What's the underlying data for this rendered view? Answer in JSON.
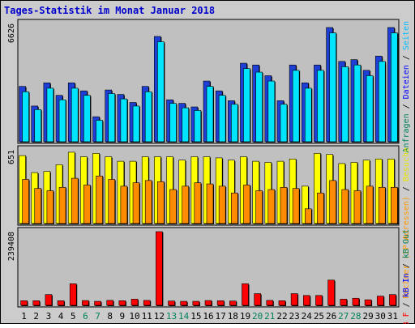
{
  "chart_data": {
    "type": "bar",
    "title": "Tages-Statistik im Monat Januar 2018",
    "categories": [
      "1",
      "2",
      "3",
      "4",
      "5",
      "6",
      "7",
      "8",
      "9",
      "10",
      "11",
      "12",
      "13",
      "14",
      "15",
      "16",
      "17",
      "18",
      "19",
      "20",
      "21",
      "22",
      "23",
      "24",
      "25",
      "26",
      "27",
      "28",
      "29",
      "30",
      "31"
    ],
    "weekend_days": [
      "6",
      "7",
      "13",
      "14",
      "20",
      "21",
      "27",
      "28"
    ],
    "panels": [
      {
        "id": "requests",
        "ytick_label": "6626",
        "ylim": [
          0,
          6626
        ],
        "side_labels": [
          {
            "text": "Anfragen",
            "color": "#00805c"
          },
          {
            "text": " / ",
            "color": "#000000"
          },
          {
            "text": "Dateien",
            "color": "#0000ff"
          },
          {
            "text": " / ",
            "color": "#000000"
          },
          {
            "text": "Seiten",
            "color": "#00bfff"
          }
        ],
        "series": [
          {
            "name": "Anfragen",
            "color": "#1e3fd6",
            "values": [
              3100,
              2000,
              3300,
              2600,
              3300,
              2850,
              1400,
              2900,
              2650,
              2200,
              3100,
              5900,
              2350,
              2150,
              1950,
              3400,
              2850,
              2300,
              4400,
              4300,
              3700,
              2300,
              4300,
              3300,
              4300,
              6400,
              4500,
              4600,
              4000,
              4800,
              6400
            ]
          },
          {
            "name": "Dateien",
            "color": "#00e5ff",
            "values": [
              2800,
              1800,
              3000,
              2350,
              3000,
              2600,
              1200,
              2700,
              2400,
              2000,
              2800,
              5600,
              2150,
              1900,
              1750,
              3100,
              2600,
              2100,
              4100,
              3900,
              3400,
              2100,
              4000,
              3000,
              4000,
              6100,
              4200,
              4300,
              3700,
              4500,
              6100
            ]
          }
        ]
      },
      {
        "id": "visits",
        "ytick_label": "651",
        "ylim": [
          0,
          651
        ],
        "side_labels": [
          {
            "text": "Rechner (IP-Adressen)",
            "color": "#ff9900"
          },
          {
            "text": " / ",
            "color": "#000000"
          },
          {
            "text": "Besuche",
            "color": "#e6e600"
          }
        ],
        "series": [
          {
            "name": "Besuche",
            "color": "#ffff00",
            "values": [
              600,
              450,
              460,
              520,
              630,
              590,
              620,
              590,
              550,
              550,
              590,
              590,
              590,
              560,
              590,
              590,
              580,
              560,
              590,
              550,
              540,
              550,
              570,
              330,
              620,
              610,
              530,
              540,
              560,
              570,
              570
            ]
          },
          {
            "name": "Rechner (IP-Adressen)",
            "color": "#ff8c00",
            "values": [
              390,
              310,
              290,
              320,
              400,
              340,
              420,
              390,
              330,
              360,
              380,
              370,
              300,
              330,
              360,
              350,
              330,
              270,
              340,
              290,
              300,
              320,
              310,
              130,
              270,
              380,
              300,
              290,
              330,
              320,
              320
            ]
          }
        ]
      },
      {
        "id": "kbytes",
        "ytick_label": "239408",
        "ylim": [
          0,
          239408
        ],
        "side_labels": [
          {
            "text": "kB F",
            "color": "#ff0000"
          },
          {
            "text": " / ",
            "color": "#000000"
          },
          {
            "text": "kB In",
            "color": "#0000ff"
          },
          {
            "text": " / ",
            "color": "#000000"
          },
          {
            "text": "kB Out",
            "color": "#00805c"
          }
        ],
        "series": [
          {
            "name": "kB F",
            "color": "#ff0000",
            "values": [
              15000,
              15000,
              35000,
              15000,
              70000,
              15500,
              13000,
              16000,
              15000,
              20000,
              16000,
              239408,
              14000,
              13000,
              13000,
              15500,
              15000,
              14000,
              70000,
              38000,
              16000,
              15000,
              38000,
              32000,
              32000,
              82000,
              20000,
              23000,
              18000,
              30000,
              35000
            ]
          }
        ]
      }
    ]
  }
}
